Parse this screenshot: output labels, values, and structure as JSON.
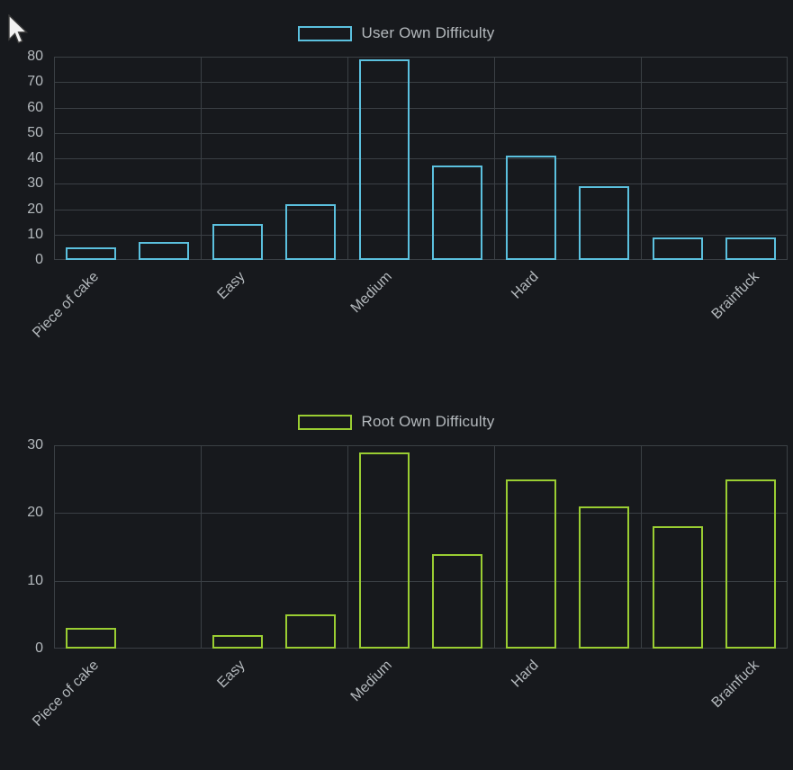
{
  "theme": {
    "background": "#17191d",
    "grid_color": "#3b4045",
    "text_color": "#b4b9bd"
  },
  "cursor": {
    "icon": "arrow-pointer"
  },
  "chart_data": [
    {
      "type": "bar",
      "title": "User Own Difficulty",
      "series_color": "#5bc0de",
      "bar_style": "outlined-no-fill",
      "categories": [
        "Piece of cake",
        "Easy",
        "Medium",
        "Hard",
        "Brainfuck"
      ],
      "bars_per_category": 2,
      "label_bar_indices": [
        0,
        2,
        4,
        6,
        9
      ],
      "values": [
        5,
        7,
        14,
        22,
        79,
        37,
        41,
        29,
        9,
        9
      ],
      "yticks": [
        0,
        10,
        20,
        30,
        40,
        50,
        60,
        70,
        80
      ],
      "ylim": [
        0,
        80
      ],
      "xlabel": "",
      "ylabel": "",
      "grid": true,
      "legend_position": "top"
    },
    {
      "type": "bar",
      "title": "Root Own Difficulty",
      "series_color": "#9acd32",
      "bar_style": "outlined-no-fill",
      "categories": [
        "Piece of cake",
        "Easy",
        "Medium",
        "Hard",
        "Brainfuck"
      ],
      "bars_per_category": 2,
      "label_bar_indices": [
        0,
        2,
        4,
        6,
        9
      ],
      "values": [
        3,
        0,
        2,
        5,
        29,
        14,
        25,
        21,
        18,
        25
      ],
      "yticks": [
        0,
        10,
        20,
        30
      ],
      "ylim": [
        0,
        30
      ],
      "xlabel": "",
      "ylabel": "",
      "grid": true,
      "legend_position": "top"
    }
  ]
}
